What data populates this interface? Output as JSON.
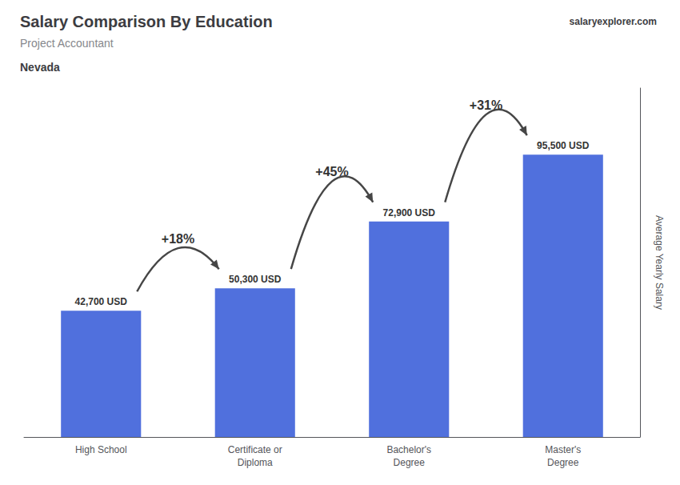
{
  "chart_data": {
    "type": "bar",
    "title": "Salary Comparison By Education",
    "subtitle": "Project Accountant",
    "ylabel": "Average Yearly Salary",
    "categories": [
      "High School",
      "Certificate or\nDiploma",
      "Bachelor's\nDegree",
      "Master's\nDegree"
    ],
    "values": [
      42700,
      50300,
      72900,
      95500
    ],
    "value_labels": [
      "42,700 USD",
      "50,300 USD",
      "72,900 USD",
      "95,500 USD"
    ],
    "data_labels": true,
    "ylim": [
      0,
      118000
    ],
    "tick_labels": "x",
    "grid": false,
    "annotations": [
      {
        "text": "Nevada"
      },
      {
        "text": "salaryexplorer.com"
      },
      {
        "text": "+18%",
        "from": "High School",
        "to": "Certificate or\nDiploma"
      },
      {
        "text": "+45%",
        "from": "Certificate or\nDiploma",
        "to": "Bachelor's\nDegree"
      },
      {
        "text": "+31%",
        "from": "Bachelor's\nDegree",
        "to": "Master's\nDegree"
      }
    ]
  }
}
